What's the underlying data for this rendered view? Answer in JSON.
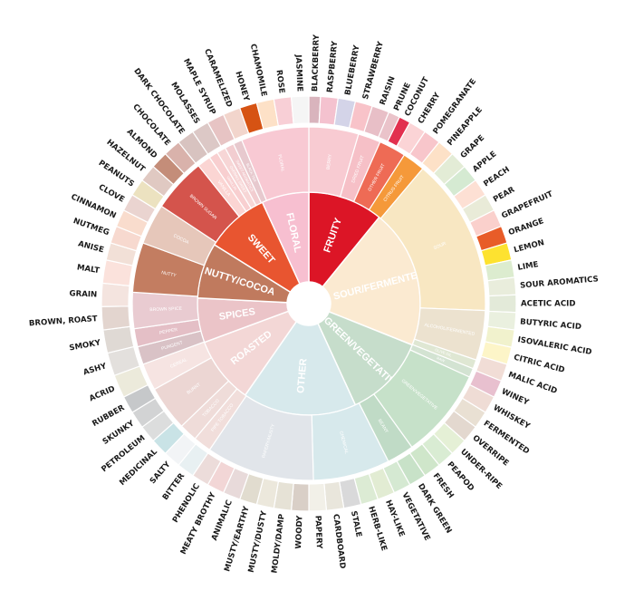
{
  "wheel": {
    "inner": [
      {
        "name": "FRUITY",
        "span": 27,
        "color": "#dc1526"
      },
      {
        "name": "SOUR/FERMENTED",
        "span": 50,
        "color": "#fbead1"
      },
      {
        "name": "GREEN/VEGETATIVE",
        "span": 30,
        "color": "#c6ddcb"
      },
      {
        "name": "OTHER",
        "span": 41,
        "color": "#d7e9ec"
      },
      {
        "name": "ROASTED",
        "span": 24,
        "color": "#f3d7d6"
      },
      {
        "name": "SPICES",
        "span": 16,
        "color": "#ebc4c8"
      },
      {
        "name": "NUTTY/COCOA",
        "span": 20,
        "color": "#c07a5e"
      },
      {
        "name": "SWEET",
        "span": 23,
        "color": "#e85530"
      },
      {
        "name": "FLORAL",
        "span": 17,
        "color": "#f7bfd0"
      }
    ],
    "middle": [
      {
        "name": "BERRY",
        "span": 11,
        "color": "#f8cbd2"
      },
      {
        "name": "DRIED FRUIT",
        "span": 5,
        "color": "#f6c0c7"
      },
      {
        "name": "OTHER FRUIT",
        "span": 6,
        "color": "#ee6b55"
      },
      {
        "name": "CITRUS FRUIT",
        "span": 5,
        "color": "#f5993a"
      },
      {
        "name": "SOUR",
        "span": 35,
        "color": "#f8e7c2"
      },
      {
        "name": "ALCOHOL/FERMENTED",
        "span": 11,
        "color": "#ece2cf"
      },
      {
        "name": "OLIVE OIL",
        "span": 2,
        "color": "#dfe7d3"
      },
      {
        "name": "RAW",
        "span": 2,
        "color": "#d3e3d2"
      },
      {
        "name": "GREEN/VEGETATIVE",
        "span": 20,
        "color": "#c6e1c9"
      },
      {
        "name": "BEANY",
        "span": 6,
        "color": "#c0dbc6"
      },
      {
        "name": "CHEMICAL",
        "span": 17,
        "color": "#d7e9ec"
      },
      {
        "name": "PAPERY/MUSTY",
        "span": 24,
        "color": "#e1e5ea"
      },
      {
        "name": "PIPE TOBACCO",
        "span": 4,
        "color": "#f1dedb"
      },
      {
        "name": "TOBACCO",
        "span": 4,
        "color": "#efdcd9"
      },
      {
        "name": "BURNT",
        "span": 10,
        "color": "#ecd6d3"
      },
      {
        "name": "CEREAL",
        "span": 6,
        "color": "#f6e4e2"
      },
      {
        "name": "PUNGENT",
        "span": 4,
        "color": "#d9c2c6"
      },
      {
        "name": "PEPPER",
        "span": 4,
        "color": "#e4bfc6"
      },
      {
        "name": "BROWN SPICE",
        "span": 8,
        "color": "#e9cbd1"
      },
      {
        "name": "NUTTY",
        "span": 11,
        "color": "#c37d61"
      },
      {
        "name": "COCOA",
        "span": 9,
        "color": "#e6c7ba"
      },
      {
        "name": "BROWN SUGAR",
        "span": 12,
        "color": "#d4544c"
      },
      {
        "name": "VANILLA",
        "span": 3,
        "color": "#fbd5d3"
      },
      {
        "name": "VANILLIN",
        "span": 2,
        "color": "#f8cfd0"
      },
      {
        "name": "OVERALL SWEET",
        "span": 2,
        "color": "#f7d6d6"
      },
      {
        "name": "SWEET AROMATICS",
        "span": 2,
        "color": "#f2cdd0"
      },
      {
        "name": "BLACK TEA",
        "span": 2,
        "color": "#e7c9ce"
      },
      {
        "name": "FLORAL",
        "span": 15,
        "color": "#f8c9d3"
      }
    ],
    "outer": [
      {
        "name": "BLACKBERRY",
        "span": 2,
        "color": "#d9b4bd"
      },
      {
        "name": "RASPBERRY",
        "span": 3,
        "color": "#f4c2cf"
      },
      {
        "name": "BLUEBERRY",
        "span": 3,
        "color": "#d4d4e8"
      },
      {
        "name": "STRAWBERRY",
        "span": 3,
        "color": "#f8c3c9"
      },
      {
        "name": "RAISIN",
        "span": 3,
        "color": "#e8bfc7"
      },
      {
        "name": "PRUNE",
        "span": 2,
        "color": "#eac3ca"
      },
      {
        "name": "COCONUT",
        "span": 2,
        "color": "#e2304f"
      },
      {
        "name": "CHERRY",
        "span": 3,
        "color": "#fbd4d6"
      },
      {
        "name": "POMEGRANATE",
        "span": 3,
        "color": "#f8c6cb"
      },
      {
        "name": "PINEAPPLE",
        "span": 3,
        "color": "#fde1c7"
      },
      {
        "name": "GRAPE",
        "span": 3,
        "color": "#e3ecd6"
      },
      {
        "name": "APPLE",
        "span": 3,
        "color": "#d5ead2"
      },
      {
        "name": "PEACH",
        "span": 3,
        "color": "#fde0d4"
      },
      {
        "name": "PEAR",
        "span": 3,
        "color": "#e9ebd8"
      },
      {
        "name": "GRAPEFRUIT",
        "span": 3,
        "color": "#fad0cc"
      },
      {
        "name": "ORANGE",
        "span": 3,
        "color": "#e85c28"
      },
      {
        "name": "LEMON",
        "span": 3,
        "color": "#fde230"
      },
      {
        "name": "LIME",
        "span": 3,
        "color": "#dceccf"
      },
      {
        "name": "SOUR AROMATICS",
        "span": 3,
        "color": "#e9eddc"
      },
      {
        "name": "ACETIC ACID",
        "span": 3,
        "color": "#e3ead9"
      },
      {
        "name": "BUTYRIC ACID",
        "span": 3,
        "color": "#eaf0df"
      },
      {
        "name": "ISOVALERIC ACID",
        "span": 3,
        "color": "#f1f2cd"
      },
      {
        "name": "CITRIC ACID",
        "span": 3,
        "color": "#fdf5c8"
      },
      {
        "name": "MALIC ACID",
        "span": 3,
        "color": "#f1ddd6"
      },
      {
        "name": "WINEY",
        "span": 3,
        "color": "#e8c0cf"
      },
      {
        "name": "WHISKEY",
        "span": 3,
        "color": "#efdcd5"
      },
      {
        "name": "FERMENTED",
        "span": 3,
        "color": "#e9e0d3"
      },
      {
        "name": "OVERRIPE",
        "span": 3,
        "color": "#e3d8cf"
      },
      {
        "name": "UNDER-RIPE",
        "span": 3,
        "color": "#e5f0d6"
      },
      {
        "name": "PEAPOD",
        "span": 3,
        "color": "#d9ecd3"
      },
      {
        "name": "FRESH",
        "span": 3,
        "color": "#cfe6ca"
      },
      {
        "name": "DARK GREEN",
        "span": 3,
        "color": "#c8e2c8"
      },
      {
        "name": "VEGETATIVE",
        "span": 3,
        "color": "#d5e9d2"
      },
      {
        "name": "HAY-LIKE",
        "span": 3,
        "color": "#e2ecd3"
      },
      {
        "name": "HERB-LIKE",
        "span": 3,
        "color": "#dcebd4"
      },
      {
        "name": "STALE",
        "span": 3,
        "color": "#d9d9da"
      },
      {
        "name": "CARDBOARD",
        "span": 3,
        "color": "#e9e6dc"
      },
      {
        "name": "PAPERY",
        "span": 3,
        "color": "#f2f0e8"
      },
      {
        "name": "WOODY",
        "span": 3,
        "color": "#d9cfc7"
      },
      {
        "name": "MOLDY/DAMP",
        "span": 3,
        "color": "#e6e2d6"
      },
      {
        "name": "MUSTY/DUSTY",
        "span": 3,
        "color": "#ece8dc"
      },
      {
        "name": "MUSTY/EARTHY",
        "span": 3,
        "color": "#e1dccf"
      },
      {
        "name": "ANIMALIC",
        "span": 3,
        "color": "#e8dada"
      },
      {
        "name": "MEATY BROTHY",
        "span": 3,
        "color": "#f2d6d6"
      },
      {
        "name": "PHENOLIC",
        "span": 3,
        "color": "#ecdcda"
      },
      {
        "name": "BITTER",
        "span": 3,
        "color": "#e8f0f2"
      },
      {
        "name": "SALTY",
        "span": 3,
        "color": "#f2f4f6"
      },
      {
        "name": "MEDICINAL",
        "span": 3,
        "color": "#c9e3e6"
      },
      {
        "name": "PETROLEUM",
        "span": 3,
        "color": "#dcdddd"
      },
      {
        "name": "SKUNKY",
        "span": 3,
        "color": "#d2d3d4"
      },
      {
        "name": "RUBBER",
        "span": 3,
        "color": "#c6c8ca"
      },
      {
        "name": "ACRID",
        "span": 4,
        "color": "#eceadb"
      },
      {
        "name": "ASHY",
        "span": 4,
        "color": "#e3e0dd"
      },
      {
        "name": "SMOKY",
        "span": 4,
        "color": "#dfd9d4"
      },
      {
        "name": "BROWN, ROAST",
        "span": 4,
        "color": "#e3d5cf"
      },
      {
        "name": "GRAIN",
        "span": 4,
        "color": "#f4e4df"
      },
      {
        "name": "MALT",
        "span": 4,
        "color": "#fbe2dc"
      },
      {
        "name": "ANISE",
        "span": 3,
        "color": "#f2e0d7"
      },
      {
        "name": "NUTMEG",
        "span": 3,
        "color": "#f7d9cf"
      },
      {
        "name": "CINNAMON",
        "span": 3,
        "color": "#f9dccd"
      },
      {
        "name": "CLOVE",
        "span": 3,
        "color": "#ead4d0"
      },
      {
        "name": "PEANUTS",
        "span": 3,
        "color": "#ece2c0"
      },
      {
        "name": "HAZELNUT",
        "span": 3,
        "color": "#e0c9c2"
      },
      {
        "name": "ALMOND",
        "span": 3,
        "color": "#c48d79"
      },
      {
        "name": "CHOCOLATE",
        "span": 3,
        "color": "#d9b2ab"
      },
      {
        "name": "DARK CHOCOLATE",
        "span": 3,
        "color": "#d8c3c0"
      },
      {
        "name": "MOLASSES",
        "span": 3,
        "color": "#dcc8c6"
      },
      {
        "name": "MAPLE SYRUP",
        "span": 3,
        "color": "#e7c4c4"
      },
      {
        "name": "CARAMELIZED",
        "span": 3,
        "color": "#f2d5cc"
      },
      {
        "name": "HONEY",
        "span": 3,
        "color": "#d65313"
      },
      {
        "name": "CHAMOMILE",
        "span": 3,
        "color": "#fde1c7"
      },
      {
        "name": "ROSE",
        "span": 3,
        "color": "#f8cfd6"
      },
      {
        "name": "JASMINE",
        "span": 3,
        "color": "#f5f5f5"
      }
    ]
  }
}
